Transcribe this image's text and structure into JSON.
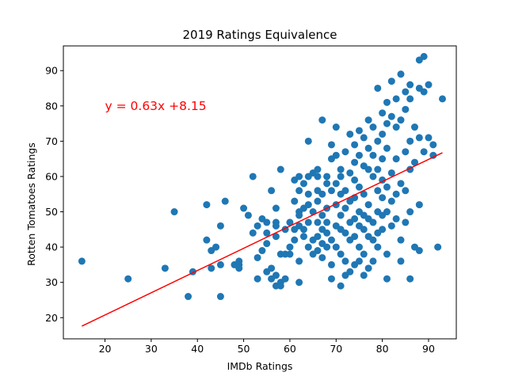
{
  "chart_data": {
    "type": "scatter",
    "title": "2019 Ratings Equivalence",
    "xlabel": "IMDb Ratings",
    "ylabel": "Rotten Tomatoes Ratings",
    "xlim": [
      11,
      96
    ],
    "ylim": [
      14,
      97
    ],
    "xticks": [
      20,
      30,
      40,
      50,
      60,
      70,
      80,
      90
    ],
    "yticks": [
      20,
      30,
      40,
      50,
      60,
      70,
      80,
      90
    ],
    "grid": false,
    "point_color": "#1f77b4",
    "regression": {
      "slope": 0.63,
      "intercept": 8.15,
      "x_range": [
        15,
        93
      ],
      "color": "#ff0000",
      "equation_text": "y = 0.63x +8.15",
      "equation_position": [
        20,
        80
      ]
    },
    "series": [
      {
        "points": [
          [
            15,
            36
          ],
          [
            25,
            31
          ],
          [
            33,
            34
          ],
          [
            35,
            50
          ],
          [
            38,
            26
          ],
          [
            39,
            33
          ],
          [
            42,
            52
          ],
          [
            42,
            42
          ],
          [
            43,
            39
          ],
          [
            43,
            34
          ],
          [
            44,
            40
          ],
          [
            45,
            26
          ],
          [
            45,
            46
          ],
          [
            45,
            35
          ],
          [
            46,
            53
          ],
          [
            48,
            35
          ],
          [
            49,
            35
          ],
          [
            49,
            36
          ],
          [
            49,
            34
          ],
          [
            50,
            51
          ],
          [
            51,
            49
          ],
          [
            52,
            60
          ],
          [
            52,
            44
          ],
          [
            53,
            46
          ],
          [
            53,
            31
          ],
          [
            53,
            37
          ],
          [
            54,
            48
          ],
          [
            54,
            39
          ],
          [
            55,
            47
          ],
          [
            55,
            44
          ],
          [
            55,
            41
          ],
          [
            55,
            33
          ],
          [
            56,
            31
          ],
          [
            56,
            34
          ],
          [
            56,
            56
          ],
          [
            57,
            46
          ],
          [
            57,
            51
          ],
          [
            57,
            47
          ],
          [
            57,
            43
          ],
          [
            57,
            29
          ],
          [
            57,
            32
          ],
          [
            58,
            62
          ],
          [
            58,
            38
          ],
          [
            58,
            30
          ],
          [
            58,
            29
          ],
          [
            59,
            38
          ],
          [
            59,
            45
          ],
          [
            59,
            31
          ],
          [
            60,
            40
          ],
          [
            60,
            38
          ],
          [
            60,
            47
          ],
          [
            61,
            59
          ],
          [
            61,
            53
          ],
          [
            61,
            45
          ],
          [
            61,
            42
          ],
          [
            62,
            60
          ],
          [
            62,
            56
          ],
          [
            62,
            50
          ],
          [
            62,
            46
          ],
          [
            62,
            30
          ],
          [
            62,
            36
          ],
          [
            62,
            49
          ],
          [
            63,
            58
          ],
          [
            63,
            51
          ],
          [
            63,
            45
          ],
          [
            63,
            43
          ],
          [
            64,
            70
          ],
          [
            64,
            55
          ],
          [
            64,
            60
          ],
          [
            64,
            47
          ],
          [
            64,
            40
          ],
          [
            64,
            52
          ],
          [
            65,
            61
          ],
          [
            65,
            50
          ],
          [
            65,
            38
          ],
          [
            65,
            42
          ],
          [
            66,
            56
          ],
          [
            66,
            62
          ],
          [
            66,
            53
          ],
          [
            66,
            47
          ],
          [
            66,
            43
          ],
          [
            66,
            39
          ],
          [
            66,
            60
          ],
          [
            67,
            76
          ],
          [
            67,
            49
          ],
          [
            67,
            45
          ],
          [
            67,
            41
          ],
          [
            67,
            37
          ],
          [
            67,
            55
          ],
          [
            68,
            58
          ],
          [
            68,
            51
          ],
          [
            68,
            47
          ],
          [
            68,
            44
          ],
          [
            68,
            40
          ],
          [
            68,
            60
          ],
          [
            69,
            65
          ],
          [
            69,
            69
          ],
          [
            69,
            56
          ],
          [
            69,
            42
          ],
          [
            69,
            35
          ],
          [
            69,
            31
          ],
          [
            70,
            74
          ],
          [
            70,
            66
          ],
          [
            70,
            58
          ],
          [
            70,
            52
          ],
          [
            70,
            46
          ],
          [
            70,
            40
          ],
          [
            71,
            60
          ],
          [
            71,
            55
          ],
          [
            71,
            49
          ],
          [
            71,
            45
          ],
          [
            71,
            38
          ],
          [
            71,
            29
          ],
          [
            71,
            62
          ],
          [
            72,
            67
          ],
          [
            72,
            56
          ],
          [
            72,
            51
          ],
          [
            72,
            44
          ],
          [
            72,
            36
          ],
          [
            72,
            32
          ],
          [
            73,
            72
          ],
          [
            73,
            61
          ],
          [
            73,
            53
          ],
          [
            73,
            47
          ],
          [
            73,
            42
          ],
          [
            73,
            33
          ],
          [
            74,
            69
          ],
          [
            74,
            59
          ],
          [
            74,
            54
          ],
          [
            74,
            48
          ],
          [
            74,
            43
          ],
          [
            74,
            35
          ],
          [
            74,
            64
          ],
          [
            75,
            73
          ],
          [
            75,
            66
          ],
          [
            75,
            57
          ],
          [
            75,
            50
          ],
          [
            75,
            46
          ],
          [
            75,
            40
          ],
          [
            75,
            36
          ],
          [
            76,
            71
          ],
          [
            76,
            63
          ],
          [
            76,
            55
          ],
          [
            76,
            45
          ],
          [
            76,
            38
          ],
          [
            76,
            32
          ],
          [
            76,
            49
          ],
          [
            77,
            76
          ],
          [
            77,
            68
          ],
          [
            77,
            62
          ],
          [
            77,
            52
          ],
          [
            77,
            43
          ],
          [
            77,
            34
          ],
          [
            77,
            48
          ],
          [
            78,
            74
          ],
          [
            78,
            66
          ],
          [
            78,
            60
          ],
          [
            78,
            47
          ],
          [
            78,
            42
          ],
          [
            78,
            36
          ],
          [
            79,
            85
          ],
          [
            79,
            70
          ],
          [
            79,
            62
          ],
          [
            79,
            56
          ],
          [
            79,
            50
          ],
          [
            79,
            44
          ],
          [
            79,
            40
          ],
          [
            80,
            78
          ],
          [
            80,
            72
          ],
          [
            80,
            65
          ],
          [
            80,
            59
          ],
          [
            80,
            54
          ],
          [
            80,
            49
          ],
          [
            80,
            45
          ],
          [
            81,
            81
          ],
          [
            81,
            75
          ],
          [
            81,
            68
          ],
          [
            81,
            57
          ],
          [
            81,
            50
          ],
          [
            81,
            31
          ],
          [
            81,
            38
          ],
          [
            82,
            87
          ],
          [
            82,
            77
          ],
          [
            82,
            61
          ],
          [
            82,
            53
          ],
          [
            82,
            46
          ],
          [
            83,
            82
          ],
          [
            83,
            74
          ],
          [
            83,
            65
          ],
          [
            83,
            55
          ],
          [
            83,
            48
          ],
          [
            84,
            89
          ],
          [
            84,
            76
          ],
          [
            84,
            58
          ],
          [
            84,
            42
          ],
          [
            84,
            36
          ],
          [
            85,
            84
          ],
          [
            85,
            79
          ],
          [
            85,
            67
          ],
          [
            85,
            56
          ],
          [
            85,
            47
          ],
          [
            86,
            86
          ],
          [
            86,
            82
          ],
          [
            86,
            70
          ],
          [
            86,
            62
          ],
          [
            86,
            50
          ],
          [
            86,
            31
          ],
          [
            87,
            74
          ],
          [
            87,
            64
          ],
          [
            87,
            40
          ],
          [
            88,
            93
          ],
          [
            88,
            85
          ],
          [
            88,
            71
          ],
          [
            88,
            52
          ],
          [
            88,
            39
          ],
          [
            89,
            94
          ],
          [
            89,
            84
          ],
          [
            89,
            67
          ],
          [
            90,
            86
          ],
          [
            90,
            71
          ],
          [
            91,
            66
          ],
          [
            91,
            69
          ],
          [
            92,
            40
          ],
          [
            93,
            82
          ]
        ]
      }
    ]
  }
}
